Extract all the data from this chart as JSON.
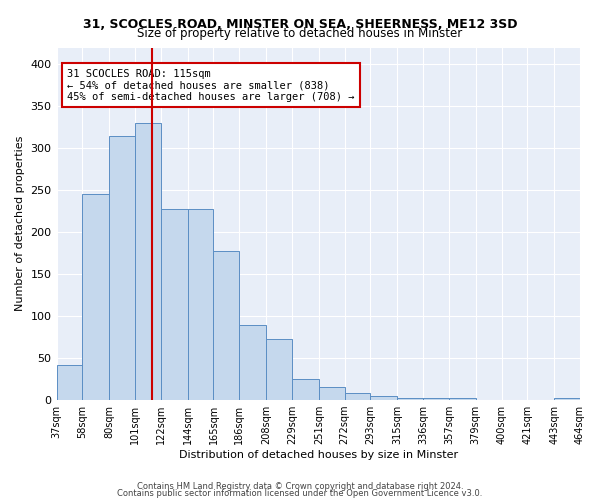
{
  "title": "31, SCOCLES ROAD, MINSTER ON SEA, SHEERNESS, ME12 3SD",
  "subtitle": "Size of property relative to detached houses in Minster",
  "xlabel": "Distribution of detached houses by size in Minster",
  "ylabel": "Number of detached properties",
  "categories": [
    "37sqm",
    "58sqm",
    "80sqm",
    "101sqm",
    "122sqm",
    "144sqm",
    "165sqm",
    "186sqm",
    "208sqm",
    "229sqm",
    "251sqm",
    "272sqm",
    "293sqm",
    "315sqm",
    "336sqm",
    "357sqm",
    "379sqm",
    "400sqm",
    "421sqm",
    "443sqm",
    "464sqm"
  ],
  "annotation_text": "31 SCOCLES ROAD: 115sqm\n← 54% of detached houses are smaller (838)\n45% of semi-detached houses are larger (708) →",
  "ref_line_x": 115,
  "footer1": "Contains HM Land Registry data © Crown copyright and database right 2024.",
  "footer2": "Contains public sector information licensed under the Open Government Licence v3.0.",
  "bar_color": "#c5d8ed",
  "bar_edge_color": "#5b8ec4",
  "ref_line_color": "#cc0000",
  "bg_color": "#e8eef8",
  "ylim": [
    0,
    420
  ],
  "bar_heights": [
    42,
    245,
    315,
    330,
    228,
    228,
    178,
    90,
    73,
    25,
    16,
    8,
    5,
    3,
    3,
    2,
    0,
    0,
    0,
    3
  ],
  "bin_edges": [
    37,
    58,
    80,
    101,
    122,
    144,
    165,
    186,
    208,
    229,
    251,
    272,
    293,
    315,
    336,
    357,
    379,
    400,
    421,
    443,
    464
  ]
}
